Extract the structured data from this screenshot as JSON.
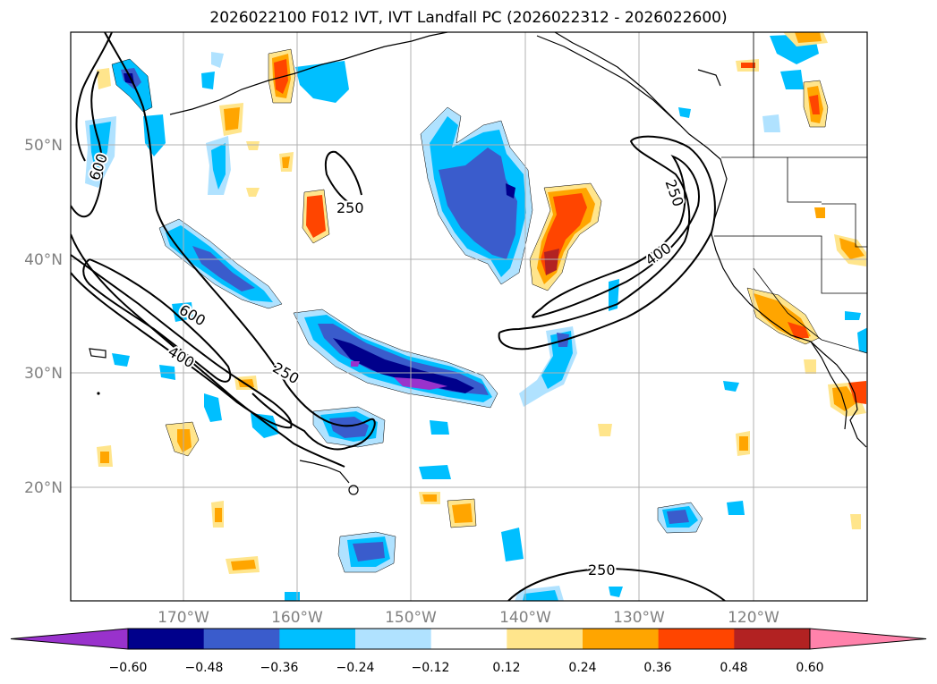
{
  "figure": {
    "title": "2026022100 F012 IVT, IVT Landfall PC (2026022312 - 2026022600)"
  },
  "axes": {
    "lat_labels": [
      "50°N",
      "40°N",
      "30°N",
      "20°N"
    ],
    "lon_labels": [
      "170°W",
      "160°W",
      "150°W",
      "140°W",
      "130°W",
      "120°W"
    ],
    "tick_color": "#808080",
    "grid_color": "#b0b0b0"
  },
  "contours": {
    "labels": [
      "600",
      "250",
      "600",
      "400",
      "250",
      "250",
      "400",
      "250"
    ],
    "color": "#000000"
  },
  "colorbar": {
    "ticks": [
      "−0.60",
      "−0.48",
      "−0.36",
      "−0.24",
      "−0.12",
      "0.12",
      "0.24",
      "0.36",
      "0.48",
      "0.60"
    ],
    "colors": [
      "#9932cc",
      "#00008b",
      "#3a5ccc",
      "#00bfff",
      "#b0e2ff",
      "#ffffff",
      "#ffe58c",
      "#ffa500",
      "#ff4500",
      "#b22222",
      "#ff82ab"
    ]
  }
}
